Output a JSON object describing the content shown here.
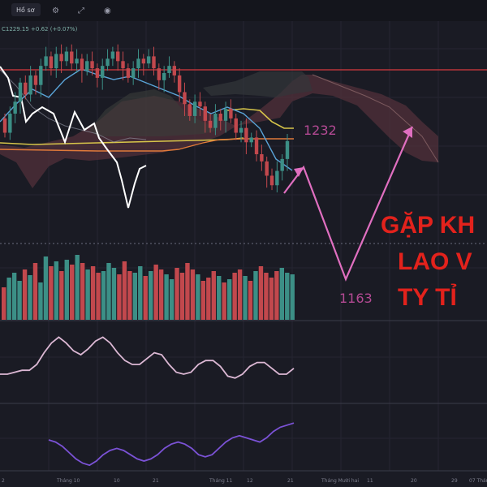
{
  "toolbar": {
    "menu_label": "Hồ sơ"
  },
  "legend": {
    "ohlc_text": "C1229.15  +0.62 (+0.07%)"
  },
  "annotations": {
    "target_high": "1232",
    "target_low": "1163",
    "headline": [
      "GẶP KH",
      "LAO V",
      "TY TỈ"
    ]
  },
  "x_axis": {
    "ticks": [
      "2",
      "Tháng 10",
      "10",
      "21",
      "Tháng 11",
      "12",
      "21",
      "Tháng Mười hai",
      "11",
      "20",
      "29",
      "07 Tháng"
    ]
  },
  "colors": {
    "background": "#1a1b24",
    "up_candle": "#3c8f86",
    "down_candle": "#c2484d",
    "pink_projection": "#e06fc0",
    "headline_red": "#e3221c",
    "resistance_line": "#b8353a",
    "white_line": "#ffffff",
    "yellow_line": "#d8c64a",
    "orange_line": "#e07a3a",
    "blue_line": "#5aa4d8",
    "cloud": "#52303a",
    "oscillator_pink": "#dcb8d4",
    "oscillator_purple": "#7b52d6"
  },
  "chart_data": {
    "type": "candlestick",
    "price_candles": [
      {
        "o": 1248,
        "c": 1236
      },
      {
        "o": 1236,
        "c": 1252
      },
      {
        "o": 1252,
        "c": 1262
      },
      {
        "o": 1262,
        "c": 1278
      },
      {
        "o": 1278,
        "c": 1268
      },
      {
        "o": 1268,
        "c": 1284
      },
      {
        "o": 1284,
        "c": 1276
      },
      {
        "o": 1276,
        "c": 1292
      },
      {
        "o": 1292,
        "c": 1300
      },
      {
        "o": 1300,
        "c": 1290
      },
      {
        "o": 1290,
        "c": 1302
      },
      {
        "o": 1302,
        "c": 1296
      },
      {
        "o": 1296,
        "c": 1304
      },
      {
        "o": 1304,
        "c": 1294
      },
      {
        "o": 1294,
        "c": 1298
      },
      {
        "o": 1298,
        "c": 1288
      },
      {
        "o": 1288,
        "c": 1296
      },
      {
        "o": 1296,
        "c": 1290
      },
      {
        "o": 1290,
        "c": 1282
      },
      {
        "o": 1282,
        "c": 1292
      },
      {
        "o": 1292,
        "c": 1298
      },
      {
        "o": 1298,
        "c": 1304
      },
      {
        "o": 1304,
        "c": 1296
      },
      {
        "o": 1296,
        "c": 1290
      },
      {
        "o": 1290,
        "c": 1282
      },
      {
        "o": 1282,
        "c": 1290
      },
      {
        "o": 1290,
        "c": 1298
      },
      {
        "o": 1298,
        "c": 1294
      },
      {
        "o": 1294,
        "c": 1300
      },
      {
        "o": 1300,
        "c": 1290
      },
      {
        "o": 1290,
        "c": 1280
      },
      {
        "o": 1280,
        "c": 1286
      },
      {
        "o": 1286,
        "c": 1292
      },
      {
        "o": 1292,
        "c": 1284
      },
      {
        "o": 1284,
        "c": 1270
      },
      {
        "o": 1270,
        "c": 1260
      },
      {
        "o": 1260,
        "c": 1250
      },
      {
        "o": 1250,
        "c": 1262
      },
      {
        "o": 1262,
        "c": 1258
      },
      {
        "o": 1258,
        "c": 1246
      },
      {
        "o": 1246,
        "c": 1240
      },
      {
        "o": 1240,
        "c": 1252
      },
      {
        "o": 1252,
        "c": 1246
      },
      {
        "o": 1246,
        "c": 1256
      },
      {
        "o": 1256,
        "c": 1248
      },
      {
        "o": 1248,
        "c": 1236
      },
      {
        "o": 1236,
        "c": 1240
      },
      {
        "o": 1240,
        "c": 1228
      },
      {
        "o": 1228,
        "c": 1232
      },
      {
        "o": 1232,
        "c": 1218
      },
      {
        "o": 1218,
        "c": 1212
      },
      {
        "o": 1212,
        "c": 1200
      },
      {
        "o": 1200,
        "c": 1192
      },
      {
        "o": 1192,
        "c": 1204
      },
      {
        "o": 1204,
        "c": 1214
      },
      {
        "o": 1214,
        "c": 1229
      }
    ],
    "volume": [
      40,
      52,
      58,
      48,
      62,
      55,
      70,
      46,
      78,
      66,
      72,
      60,
      74,
      68,
      80,
      70,
      62,
      66,
      58,
      60,
      70,
      64,
      56,
      72,
      60,
      58,
      66,
      54,
      60,
      68,
      62,
      56,
      50,
      64,
      58,
      70,
      62,
      56,
      48,
      52,
      60,
      54,
      46,
      50,
      58,
      62,
      54,
      48,
      60,
      66,
      58,
      52,
      60,
      64,
      58,
      56
    ],
    "projection": [
      1232,
      1163,
      1232
    ],
    "oscillator": [
      30,
      30,
      32,
      34,
      34,
      40,
      52,
      62,
      68,
      62,
      54,
      50,
      56,
      64,
      68,
      62,
      52,
      44,
      40,
      40,
      46,
      52,
      50,
      40,
      32,
      30,
      32,
      40,
      44,
      44,
      38,
      28,
      26,
      30,
      38,
      42,
      42,
      36,
      30,
      30,
      36
    ],
    "momentum": [
      60,
      58,
      54,
      48,
      42,
      38,
      36,
      40,
      46,
      50,
      52,
      50,
      46,
      42,
      40,
      42,
      46,
      52,
      56,
      58,
      56,
      52,
      46,
      44,
      46,
      52,
      58,
      62,
      64,
      62,
      60,
      58,
      62,
      68,
      72,
      74,
      76
    ]
  }
}
